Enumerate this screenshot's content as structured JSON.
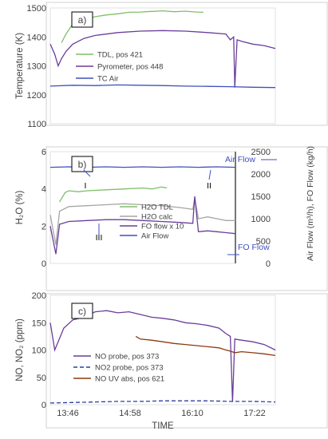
{
  "chart_data": [
    {
      "type": "line",
      "panel_label": "a)",
      "ylabel": "Temperature (K)",
      "ylim": [
        1100,
        1500
      ],
      "yticks": [
        "1100",
        "1200",
        "1300",
        "1400",
        "1500"
      ],
      "xlim": [
        0,
        1
      ],
      "series": [
        {
          "name": "TDL, pos 421",
          "color": "#7fbf6a",
          "x": [
            0.05,
            0.07,
            0.1,
            0.13,
            0.16,
            0.2,
            0.25,
            0.3,
            0.35,
            0.4,
            0.45,
            0.5,
            0.55,
            0.6,
            0.65,
            0.68
          ],
          "y": [
            1380,
            1410,
            1445,
            1455,
            1462,
            1470,
            1476,
            1480,
            1485,
            1486,
            1488,
            1490,
            1487,
            1489,
            1486,
            1485
          ]
        },
        {
          "name": "Pyrometer, pos 448",
          "color": "#6a3d9a",
          "x": [
            0.0,
            0.02,
            0.035,
            0.05,
            0.07,
            0.1,
            0.15,
            0.2,
            0.3,
            0.4,
            0.5,
            0.6,
            0.7,
            0.78,
            0.8,
            0.815,
            0.82,
            0.83,
            0.85,
            0.9,
            0.95,
            1.0
          ],
          "y": [
            1375,
            1340,
            1300,
            1325,
            1350,
            1375,
            1395,
            1405,
            1415,
            1420,
            1422,
            1420,
            1415,
            1410,
            1390,
            1400,
            1225,
            1390,
            1385,
            1375,
            1370,
            1360
          ]
        },
        {
          "name": "TC Air",
          "color": "#3f4fbf",
          "x": [
            0.0,
            0.1,
            0.2,
            0.3,
            0.4,
            0.5,
            0.6,
            0.7,
            0.8,
            0.9,
            1.0
          ],
          "y": [
            1230,
            1233,
            1232,
            1234,
            1233,
            1232,
            1230,
            1229,
            1228,
            1226,
            1225
          ]
        }
      ]
    },
    {
      "type": "line",
      "panel_label": "b)",
      "ylabel": "H₂O (%)",
      "y2label": "Air  Flow (m³/h), FO Flow (kg/h)",
      "ylim": [
        0,
        6
      ],
      "y2lim": [
        0,
        2500
      ],
      "yticks": [
        "0",
        "2",
        "4",
        "6"
      ],
      "y2ticks": [
        "0",
        "500",
        "1000",
        "1500",
        "2000",
        "2500"
      ],
      "xlim": [
        0,
        1
      ],
      "series": [
        {
          "name": "H2O TDL",
          "color": "#7fbf6a",
          "axis": "left",
          "x": [
            0.05,
            0.08,
            0.1,
            0.15,
            0.2,
            0.3,
            0.4,
            0.5,
            0.55,
            0.6,
            0.63
          ],
          "y": [
            3.3,
            3.8,
            3.9,
            3.85,
            3.9,
            3.95,
            4.0,
            4.05,
            4.0,
            4.1,
            4.05
          ]
        },
        {
          "name": "H2O calc",
          "color": "#a6a6a6",
          "axis": "left",
          "x": [
            0.0,
            0.03,
            0.05,
            0.1,
            0.2,
            0.3,
            0.4,
            0.5,
            0.6,
            0.7,
            0.77,
            0.78,
            0.8,
            0.85,
            0.9,
            0.95,
            1.0
          ],
          "y": [
            2.6,
            1.0,
            2.8,
            3.05,
            3.1,
            3.15,
            3.2,
            3.15,
            3.1,
            3.0,
            2.9,
            3.5,
            2.4,
            2.5,
            2.4,
            2.3,
            2.3
          ]
        },
        {
          "name": "FO flow x 10",
          "color": "#6a3d9a",
          "axis": "left",
          "x": [
            0.0,
            0.03,
            0.05,
            0.1,
            0.2,
            0.3,
            0.4,
            0.5,
            0.6,
            0.7,
            0.77,
            0.78,
            0.8,
            0.85,
            0.9,
            0.95,
            1.0
          ],
          "y": [
            2.0,
            0.5,
            2.1,
            2.25,
            2.3,
            2.35,
            2.35,
            2.3,
            2.25,
            2.2,
            2.15,
            3.6,
            1.7,
            1.75,
            1.7,
            1.65,
            1.6
          ]
        },
        {
          "name": "Air Flow",
          "color": "#3f4fbf",
          "axis": "right",
          "x": [
            0.0,
            0.1,
            0.2,
            0.3,
            0.4,
            0.5,
            0.6,
            0.7,
            0.8,
            0.9,
            1.0
          ],
          "y": [
            2150,
            2160,
            2150,
            2160,
            2150,
            2160,
            2150,
            2160,
            2150,
            2160,
            2150
          ]
        }
      ],
      "annotations": [
        "I",
        "II",
        "III",
        "Air Flow",
        "FO Flow"
      ]
    },
    {
      "type": "line",
      "panel_label": "c)",
      "ylabel": "NO, NO₂ (ppm)",
      "xlabel": "TIME",
      "ylim": [
        0,
        200
      ],
      "yticks": [
        "0",
        "50",
        "100",
        "150",
        "200"
      ],
      "xticks": [
        "13:46",
        "14:58",
        "16:10",
        "17:22"
      ],
      "xlim": [
        0,
        1
      ],
      "series": [
        {
          "name": "NO probe, pos 373",
          "color": "#6a3d9a",
          "dash": false,
          "x": [
            0.0,
            0.02,
            0.04,
            0.06,
            0.1,
            0.15,
            0.2,
            0.25,
            0.3,
            0.35,
            0.4,
            0.45,
            0.5,
            0.55,
            0.6,
            0.65,
            0.7,
            0.75,
            0.78,
            0.8,
            0.81,
            0.82,
            0.85,
            0.9,
            0.95,
            1.0
          ],
          "y": [
            150,
            100,
            120,
            140,
            155,
            160,
            170,
            172,
            168,
            170,
            165,
            160,
            158,
            155,
            150,
            148,
            145,
            140,
            130,
            125,
            5,
            120,
            118,
            115,
            110,
            100
          ]
        },
        {
          "name": "NO2 probe, pos 373",
          "color": "#2b3ea0",
          "dash": true,
          "x": [
            0.0,
            0.1,
            0.2,
            0.3,
            0.4,
            0.5,
            0.6,
            0.7,
            0.8,
            0.9,
            1.0
          ],
          "y": [
            3,
            4,
            5,
            6,
            6,
            7,
            7,
            7,
            6,
            6,
            5
          ]
        },
        {
          "name": "NO UV abs, pos 621",
          "color": "#8b3a0f",
          "dash": false,
          "x": [
            0.38,
            0.4,
            0.45,
            0.5,
            0.55,
            0.6,
            0.65,
            0.7,
            0.75,
            0.78,
            0.8,
            0.82,
            0.85,
            0.9,
            0.95,
            1.0
          ],
          "y": [
            125,
            120,
            118,
            115,
            112,
            110,
            108,
            106,
            104,
            100,
            98,
            95,
            97,
            95,
            93,
            90
          ]
        }
      ]
    }
  ]
}
